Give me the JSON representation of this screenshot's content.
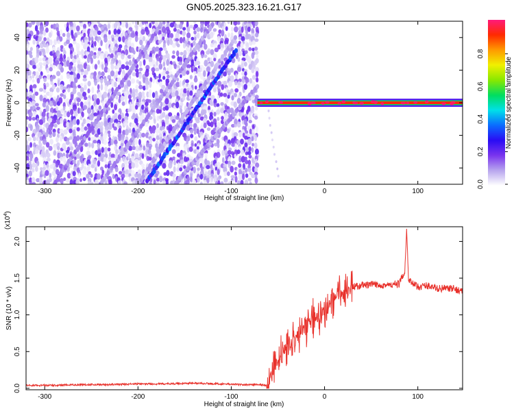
{
  "title": "GN05.2025.323.16.21.G17",
  "colors": {
    "snr_line": "#e8312b",
    "spectro_bg": "#ffffff",
    "colormap": [
      "#ffffff",
      "#b8a6ee",
      "#7a35ee",
      "#2a0cf4",
      "#0a6cff",
      "#00e0e8",
      "#00dd60",
      "#88e800",
      "#f0f000",
      "#ff9a00",
      "#ff2a00",
      "#ff1a7a"
    ]
  },
  "chart_data": [
    {
      "id": "spectrogram",
      "type": "heatmap",
      "xlabel": "Height of straight line (km)",
      "ylabel": "Frequency (Hz)",
      "xlim": [
        -320,
        148
      ],
      "ylim": [
        -50,
        50
      ],
      "xticks": [
        -300,
        -200,
        -100,
        0,
        100
      ],
      "xtick_labels": [
        "-300",
        "-200",
        "-100",
        "0",
        "100"
      ],
      "yticks": [
        -40,
        -20,
        0,
        20,
        40
      ],
      "ytick_labels": [
        "-40",
        "-20",
        "0",
        "20",
        "40"
      ],
      "noise_region_x": [
        -320,
        -72
      ],
      "features": [
        {
          "kind": "diagonal_track",
          "x": [
            -190,
            -95
          ],
          "y": [
            -48,
            32
          ],
          "amplitude": 0.3
        },
        {
          "kind": "faint_track",
          "x": [
            -290,
            -175
          ],
          "y": [
            -50,
            48
          ],
          "amplitude": 0.12
        },
        {
          "kind": "faint_track",
          "x": [
            -240,
            -120
          ],
          "y": [
            -50,
            48
          ],
          "amplitude": 0.1
        },
        {
          "kind": "faint_track",
          "x": [
            -160,
            -72
          ],
          "y": [
            -50,
            10
          ],
          "amplitude": 0.1
        },
        {
          "kind": "faint_track",
          "x": [
            -200,
            -95
          ],
          "y": [
            -50,
            40
          ],
          "amplitude": 0.08
        },
        {
          "kind": "horizontal_line",
          "x": [
            -72,
            148
          ],
          "y": 0,
          "amplitude": 1.0
        },
        {
          "kind": "tail",
          "x": [
            -60,
            -50
          ],
          "y": [
            -5,
            -45
          ],
          "amplitude": 0.05
        }
      ],
      "colorbar": {
        "label": "Normalized spectral amplitude",
        "range": [
          0,
          1
        ],
        "ticks": [
          0.0,
          0.2,
          0.4,
          0.6,
          0.8
        ],
        "tick_labels": [
          "0.0",
          "0.2",
          "0.4",
          "0.6",
          "0.8"
        ]
      }
    },
    {
      "id": "snr",
      "type": "line",
      "xlabel": "Height of straight line (km)",
      "ylabel": "SNR (10 * v/v)",
      "multiplier": "(x10",
      "multiplier_exp": "4",
      "multiplier_close": ")",
      "xlim": [
        -320,
        148
      ],
      "ylim": [
        -0.02,
        2.2
      ],
      "xticks": [
        -300,
        -200,
        -100,
        0,
        100
      ],
      "xtick_labels": [
        "-300",
        "-200",
        "-100",
        "0",
        "100"
      ],
      "yticks": [
        0.0,
        0.5,
        1.0,
        1.5,
        2.0
      ],
      "ytick_labels": [
        "0.0",
        "0.5",
        "1.0",
        "1.5",
        "2.0"
      ],
      "series": [
        {
          "name": "SNR",
          "x": [
            -320,
            -290,
            -260,
            -230,
            -200,
            -170,
            -140,
            -110,
            -90,
            -70,
            -62,
            -58,
            -50,
            -45,
            -40,
            -35,
            -30,
            -25,
            -20,
            -15,
            -10,
            -5,
            0,
            5,
            10,
            15,
            20,
            25,
            30,
            40,
            50,
            60,
            70,
            80,
            86,
            88,
            90,
            95,
            100,
            110,
            120,
            130,
            140,
            148
          ],
          "y": [
            0.04,
            0.04,
            0.05,
            0.05,
            0.06,
            0.06,
            0.07,
            0.06,
            0.05,
            0.05,
            0.04,
            0.18,
            0.35,
            0.5,
            0.55,
            0.6,
            0.7,
            0.78,
            0.85,
            0.9,
            0.98,
            1.0,
            1.05,
            1.15,
            1.22,
            1.25,
            1.3,
            1.35,
            1.38,
            1.4,
            1.41,
            1.41,
            1.4,
            1.42,
            1.6,
            2.15,
            1.5,
            1.42,
            1.38,
            1.4,
            1.36,
            1.36,
            1.35,
            1.32
          ]
        }
      ]
    }
  ]
}
